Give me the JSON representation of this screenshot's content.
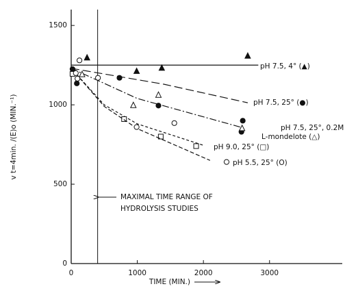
{
  "chart_data": {
    "type": "scatter",
    "xlabel": "TIME (MIN.)",
    "ylabel": "v t=4min. /(E)o (MIN.⁻¹)",
    "xlim": [
      0,
      4100
    ],
    "ylim": [
      0,
      1600
    ],
    "xticks": [
      0,
      1000,
      2000,
      3000
    ],
    "yticks": [
      0,
      500,
      1000,
      1500
    ],
    "vline": 400,
    "annotation": [
      "MAXIMAL TIME RANGE OF",
      "HYDROLYSIS STUDIES"
    ],
    "series": [
      {
        "label": [
          "pH 7.5, 4° (▲)"
        ],
        "marker": "filled-triangle",
        "dash": "solid",
        "x": [
          240,
          990,
          1370,
          2670
        ],
        "values": [
          1295,
          1210,
          1230,
          1306
        ],
        "fit_x": [
          0,
          2830
        ],
        "fit_y": [
          1250,
          1250
        ]
      },
      {
        "label": [
          "pH 7.5, 25° (●)"
        ],
        "marker": "filled-circle",
        "dash": "long",
        "x": [
          20,
          85,
          730,
          1320,
          2595,
          2575
        ],
        "values": [
          1225,
          1135,
          1170,
          995,
          900,
          830
        ],
        "fit_x": [
          0,
          1400,
          2670
        ],
        "fit_y": [
          1230,
          1130,
          1013
        ]
      },
      {
        "label": [
          "pH 7.5, 25°, 0.2M",
          "L-mondelote (△)"
        ],
        "marker": "open-triangle",
        "dash": "dashdot",
        "x": [
          165,
          940,
          1320,
          2585
        ],
        "values": [
          1190,
          995,
          1060,
          850
        ],
        "fit_x": [
          0,
          1000,
          2600
        ],
        "fit_y": [
          1230,
          1040,
          855
        ]
      },
      {
        "label": [
          "pH 9.0, 25° (□)"
        ],
        "marker": "open-square",
        "dash": "short",
        "x": [
          20,
          800,
          1355,
          1890
        ],
        "values": [
          1195,
          910,
          800,
          740
        ],
        "fit_x": [
          0,
          500,
          1000,
          2000
        ],
        "fit_y": [
          1230,
          1000,
          880,
          745
        ]
      },
      {
        "label": [
          "pH 5.5, 25° (O)"
        ],
        "marker": "open-circle",
        "dash": "medium",
        "x": [
          125,
          70,
          95,
          405,
          990,
          1560,
          2350
        ],
        "values": [
          1280,
          1200,
          1165,
          1170,
          860,
          885,
          640
        ],
        "fit_x": [
          0,
          500,
          1000,
          2100
        ],
        "fit_y": [
          1230,
          990,
          850,
          650
        ]
      }
    ]
  }
}
